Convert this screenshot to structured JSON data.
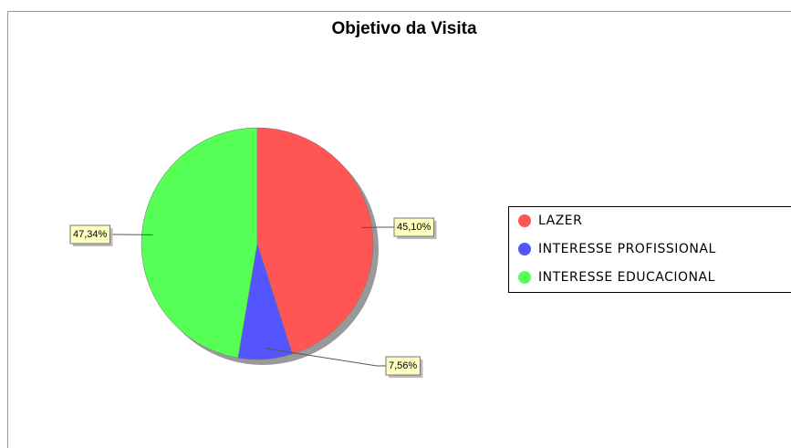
{
  "chart_data": {
    "type": "pie",
    "title": "Objetivo da Visita",
    "categories": [
      "LAZER",
      "INTERESSE PROFISSIONAL",
      "INTERESSE EDUCACIONAL"
    ],
    "values": [
      45.1,
      7.56,
      47.34
    ],
    "value_labels": [
      "45,10%",
      "7,56%",
      "47,34%"
    ],
    "colors": [
      "#ff5555",
      "#5555ff",
      "#55ff55"
    ],
    "legend": "right"
  }
}
